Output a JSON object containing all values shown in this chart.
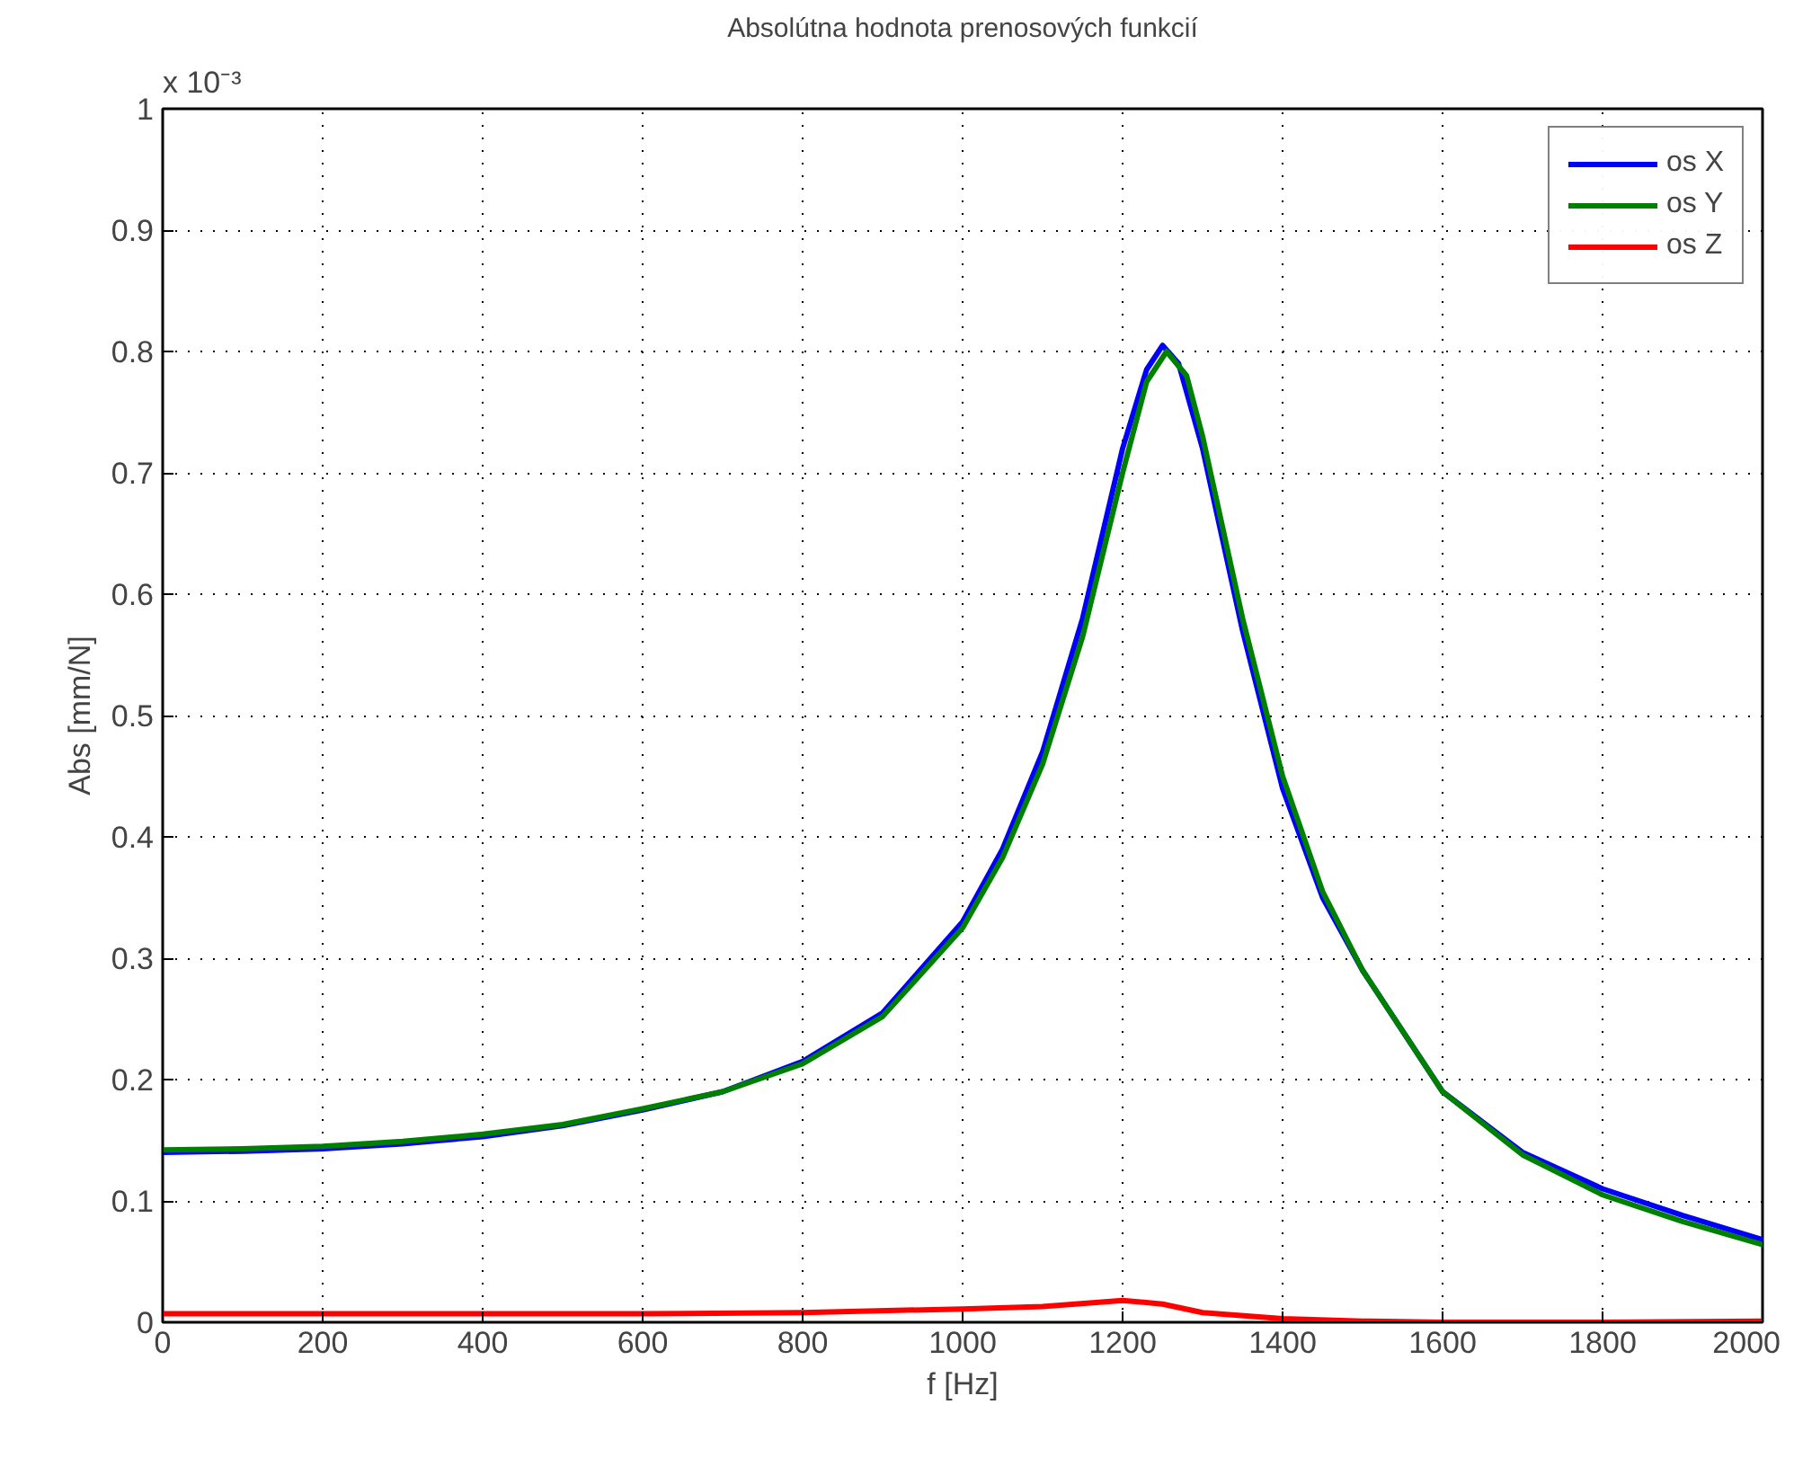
{
  "chart_data": {
    "type": "line",
    "title": "Absolútna hodnota prenosových funkcií",
    "xlabel": "f [Hz]",
    "ylabel": "Abs [mm/N]",
    "annotations": [
      "x 10⁻³"
    ],
    "xlim": [
      0,
      2000
    ],
    "ylim": [
      0,
      1
    ],
    "xticks": [
      0,
      200,
      400,
      600,
      800,
      1000,
      1200,
      1400,
      1600,
      1800,
      2000
    ],
    "yticks": [
      0,
      0.1,
      0.2,
      0.3,
      0.4,
      0.5,
      0.6,
      0.7,
      0.8,
      0.9,
      1
    ],
    "grid": true,
    "legend": "top right",
    "line_style": "solid",
    "series": [
      {
        "name": "os X",
        "color": "#0000ff",
        "x": [
          0,
          100,
          200,
          300,
          400,
          500,
          600,
          700,
          800,
          900,
          1000,
          1050,
          1100,
          1150,
          1200,
          1230,
          1250,
          1270,
          1300,
          1350,
          1400,
          1450,
          1500,
          1600,
          1700,
          1800,
          1900,
          2000
        ],
        "values": [
          0.14,
          0.141,
          0.143,
          0.147,
          0.153,
          0.162,
          0.175,
          0.19,
          0.215,
          0.255,
          0.33,
          0.39,
          0.47,
          0.58,
          0.72,
          0.785,
          0.805,
          0.79,
          0.72,
          0.57,
          0.44,
          0.35,
          0.29,
          0.19,
          0.14,
          0.11,
          0.088,
          0.068
        ]
      },
      {
        "name": "os Y",
        "color": "#008000",
        "x": [
          0,
          100,
          200,
          300,
          400,
          500,
          600,
          700,
          800,
          900,
          1000,
          1050,
          1100,
          1150,
          1200,
          1230,
          1255,
          1280,
          1300,
          1350,
          1400,
          1450,
          1500,
          1600,
          1700,
          1800,
          1900,
          2000
        ],
        "values": [
          0.142,
          0.143,
          0.145,
          0.149,
          0.155,
          0.163,
          0.176,
          0.19,
          0.213,
          0.252,
          0.325,
          0.383,
          0.46,
          0.565,
          0.7,
          0.775,
          0.8,
          0.78,
          0.73,
          0.58,
          0.45,
          0.355,
          0.29,
          0.19,
          0.138,
          0.105,
          0.083,
          0.064
        ]
      },
      {
        "name": "os Z",
        "color": "#ff0000",
        "x": [
          0,
          200,
          400,
          600,
          800,
          1000,
          1100,
          1200,
          1250,
          1300,
          1400,
          1500,
          1600,
          1800,
          2000
        ],
        "values": [
          0.007,
          0.007,
          0.007,
          0.007,
          0.008,
          0.011,
          0.013,
          0.018,
          0.015,
          0.008,
          0.003,
          0.001,
          0,
          0,
          0.001
        ]
      }
    ]
  }
}
